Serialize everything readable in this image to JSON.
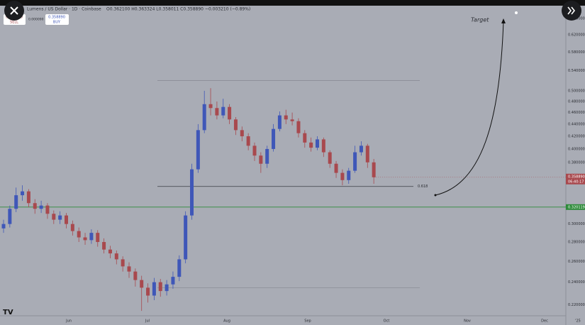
{
  "chart_data": {
    "type": "candlestick",
    "title": "Lumens / US Dollar · 1D · Coinbase",
    "ohlc_text": "O0.362100 H0.363324 L0.358011 C0.358890 −0.003210 (−0.89%)",
    "sell": {
      "price": "0.358800",
      "label": "SELL"
    },
    "spread": "0.000090",
    "buy": {
      "price": "0.358890",
      "label": "BUY"
    },
    "log_scale": true,
    "ylim": [
      0.211,
      0.693
    ],
    "yticks": [
      {
        "value": 0.66,
        "label": "0.660000"
      },
      {
        "value": 0.62,
        "label": "0.620000"
      },
      {
        "value": 0.58,
        "label": "0.580000"
      },
      {
        "value": 0.54,
        "label": "0.540000"
      },
      {
        "value": 0.5,
        "label": "0.500000"
      },
      {
        "value": 0.48,
        "label": "0.480000"
      },
      {
        "value": 0.46,
        "label": "0.460000"
      },
      {
        "value": 0.44,
        "label": "0.440000"
      },
      {
        "value": 0.42,
        "label": "0.420000"
      },
      {
        "value": 0.4,
        "label": "0.400000"
      },
      {
        "value": 0.38,
        "label": "0.380000"
      },
      {
        "value": 0.3,
        "label": "0.300000"
      },
      {
        "value": 0.28,
        "label": "0.280000"
      },
      {
        "value": 0.26,
        "label": "0.260000"
      },
      {
        "value": 0.24,
        "label": "0.240000"
      },
      {
        "value": 0.22,
        "label": "0.220000"
      }
    ],
    "x_labels": [
      "Jun",
      "Jul",
      "Aug",
      "Sep",
      "Oct",
      "Nov",
      "Dec",
      "'25"
    ],
    "up_color": "#3f57b8",
    "down_color": "#a8494e",
    "open": [
      0.295,
      0.3,
      0.318,
      0.335,
      0.34,
      0.325,
      0.318,
      0.322,
      0.312,
      0.305,
      0.31,
      0.3,
      0.292,
      0.285,
      0.282,
      0.29,
      0.28,
      0.272,
      0.268,
      0.262,
      0.255,
      0.25,
      0.242,
      0.235,
      0.228,
      0.24,
      0.232,
      0.238,
      0.245,
      0.262,
      0.31,
      0.37,
      0.43,
      0.475,
      0.468,
      0.455,
      0.47,
      0.448,
      0.43,
      0.42,
      0.405,
      0.39,
      0.378,
      0.4,
      0.432,
      0.455,
      0.448,
      0.445,
      0.425,
      0.41,
      0.402,
      0.415,
      0.395,
      0.378,
      0.365,
      0.355,
      0.368,
      0.395,
      0.405,
      0.38
    ],
    "high": [
      0.305,
      0.322,
      0.345,
      0.348,
      0.343,
      0.33,
      0.328,
      0.325,
      0.316,
      0.315,
      0.313,
      0.304,
      0.296,
      0.29,
      0.294,
      0.293,
      0.284,
      0.276,
      0.271,
      0.265,
      0.259,
      0.253,
      0.246,
      0.239,
      0.244,
      0.243,
      0.242,
      0.25,
      0.266,
      0.315,
      0.378,
      0.44,
      0.5,
      0.505,
      0.48,
      0.485,
      0.475,
      0.452,
      0.436,
      0.425,
      0.41,
      0.395,
      0.405,
      0.44,
      0.462,
      0.465,
      0.46,
      0.45,
      0.43,
      0.418,
      0.42,
      0.418,
      0.398,
      0.382,
      0.37,
      0.372,
      0.405,
      0.412,
      0.408,
      0.385
    ],
    "low": [
      0.29,
      0.296,
      0.314,
      0.328,
      0.32,
      0.312,
      0.313,
      0.306,
      0.3,
      0.3,
      0.295,
      0.287,
      0.28,
      0.277,
      0.278,
      0.275,
      0.268,
      0.263,
      0.257,
      0.25,
      0.244,
      0.236,
      0.215,
      0.222,
      0.224,
      0.227,
      0.228,
      0.234,
      0.241,
      0.258,
      0.305,
      0.365,
      0.425,
      0.455,
      0.448,
      0.45,
      0.44,
      0.422,
      0.412,
      0.398,
      0.382,
      0.365,
      0.372,
      0.396,
      0.428,
      0.44,
      0.438,
      0.418,
      0.402,
      0.396,
      0.398,
      0.388,
      0.372,
      0.358,
      0.348,
      0.35,
      0.365,
      0.39,
      0.372,
      0.35
    ],
    "close": [
      0.3,
      0.318,
      0.335,
      0.34,
      0.325,
      0.318,
      0.322,
      0.312,
      0.305,
      0.31,
      0.3,
      0.292,
      0.285,
      0.282,
      0.29,
      0.28,
      0.272,
      0.268,
      0.262,
      0.255,
      0.25,
      0.242,
      0.235,
      0.228,
      0.24,
      0.232,
      0.238,
      0.245,
      0.262,
      0.31,
      0.37,
      0.43,
      0.475,
      0.468,
      0.455,
      0.47,
      0.448,
      0.43,
      0.42,
      0.405,
      0.39,
      0.378,
      0.4,
      0.432,
      0.455,
      0.448,
      0.445,
      0.425,
      0.41,
      0.402,
      0.415,
      0.395,
      0.378,
      0.365,
      0.355,
      0.368,
      0.395,
      0.405,
      0.38,
      0.3589
    ],
    "range_lines": [
      0.52,
      0.235
    ],
    "fib_level": {
      "value": 0.3465,
      "label": "0.618"
    },
    "support": {
      "value": 0.320119,
      "color": "#2e8b3a"
    },
    "last_price": {
      "value": 0.35889,
      "label": "0.358890"
    },
    "countdown": "06:40:17",
    "target_label": "Target"
  }
}
